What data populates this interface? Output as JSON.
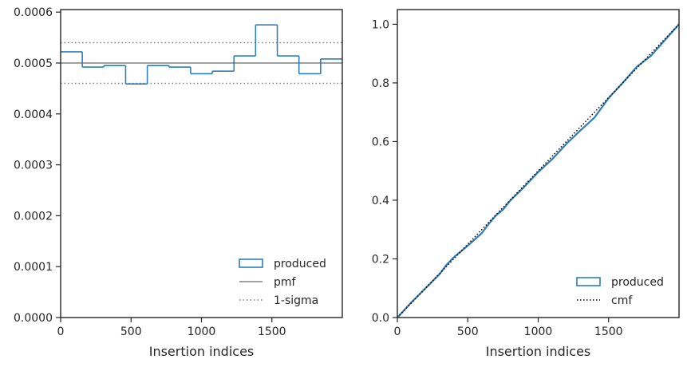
{
  "colors": {
    "hist": "#2f7eb8",
    "pmf": "#808080",
    "sigma": "#808080",
    "cmf": "#000000",
    "axis": "#262626"
  },
  "chart_data": [
    {
      "type": "histogram",
      "xlabel": "Insertion indices",
      "ylabel": "",
      "xlim": [
        0,
        2000
      ],
      "ylim": [
        0,
        0.000605
      ],
      "x_ticks": [
        0,
        500,
        1000,
        1500
      ],
      "x_tick_labels": [
        "0",
        "500",
        "1000",
        "1500"
      ],
      "y_ticks": [
        0,
        0.0001,
        0.0002,
        0.0003,
        0.0004,
        0.0005,
        0.0006
      ],
      "y_tick_labels": [
        "0.0000",
        "0.0001",
        "0.0002",
        "0.0003",
        "0.0004",
        "0.0005",
        "0.0006"
      ],
      "bin_edges": [
        0,
        153.8,
        307.7,
        461.5,
        615.4,
        769.2,
        923.1,
        1076.9,
        1230.8,
        1384.6,
        1538.5,
        1692.3,
        1846.2,
        2000
      ],
      "values": [
        0.000522,
        0.000492,
        0.000495,
        0.000459,
        0.000495,
        0.000492,
        0.000479,
        0.000484,
        0.000514,
        0.000575,
        0.000514,
        0.000479,
        0.000508
      ],
      "pmf": 0.0005,
      "sigma_band": [
        0.00046,
        0.00054
      ],
      "legend": {
        "position": "lower-right",
        "entries": [
          "produced",
          "pmf",
          "1-sigma"
        ]
      }
    },
    {
      "type": "line",
      "xlabel": "Insertion indices",
      "ylabel": "",
      "xlim": [
        0,
        2000
      ],
      "ylim": [
        0,
        1.05
      ],
      "x_ticks": [
        0,
        500,
        1000,
        1500
      ],
      "x_tick_labels": [
        "0",
        "500",
        "1000",
        "1500"
      ],
      "y_ticks": [
        0,
        0.2,
        0.4,
        0.6,
        0.8,
        1.0
      ],
      "y_tick_labels": [
        "0.0",
        "0.2",
        "0.4",
        "0.6",
        "0.8",
        "1.0"
      ],
      "produced": {
        "x": [
          0,
          100,
          200,
          300,
          350,
          400,
          500,
          600,
          650,
          700,
          750,
          800,
          900,
          1000,
          1100,
          1200,
          1300,
          1400,
          1500,
          1600,
          1700,
          1800,
          1900,
          2000
        ],
        "y": [
          0,
          0.052,
          0.1,
          0.148,
          0.18,
          0.205,
          0.245,
          0.288,
          0.32,
          0.348,
          0.368,
          0.398,
          0.445,
          0.496,
          0.54,
          0.592,
          0.638,
          0.682,
          0.748,
          0.8,
          0.855,
          0.892,
          0.946,
          1.0
        ]
      },
      "cmf": {
        "x": [
          0,
          2000
        ],
        "y": [
          0,
          1.0
        ]
      },
      "legend": {
        "position": "lower-right",
        "entries": [
          "produced",
          "cmf"
        ]
      }
    }
  ]
}
